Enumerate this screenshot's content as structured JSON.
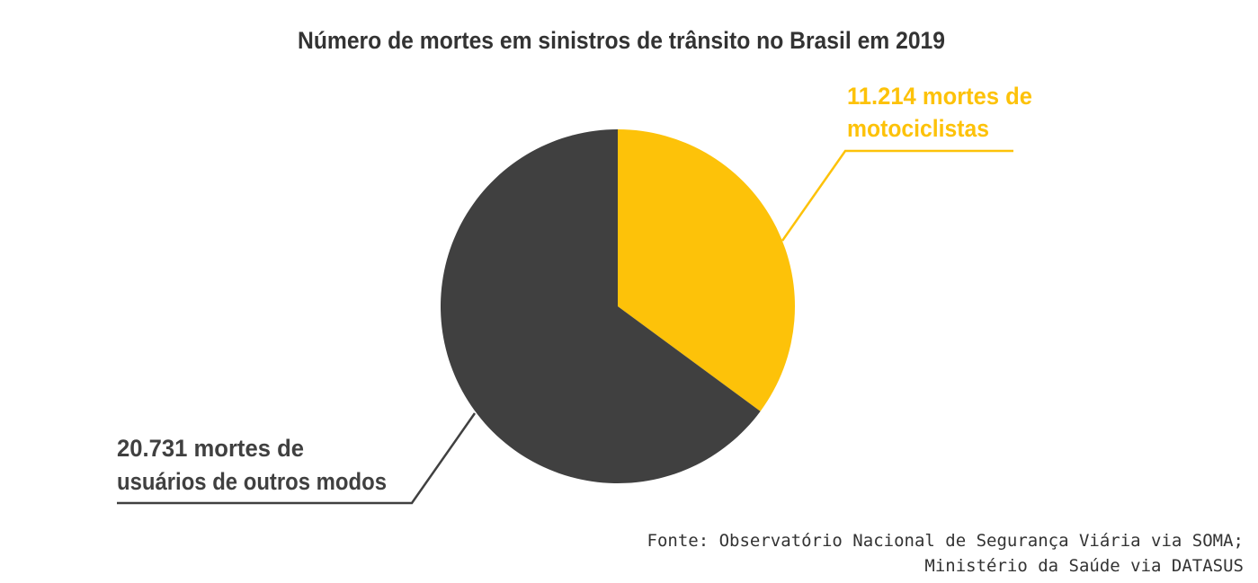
{
  "chart_data": {
    "type": "pie",
    "title": "Número de mortes em sinistros de trânsito no Brasil em 2019",
    "slices": [
      {
        "label_lines": [
          "11.214 mortes de",
          "motociclistas"
        ],
        "value": 11214,
        "color": "#FDC209"
      },
      {
        "label_lines": [
          "20.731 mortes de",
          "usuários de outros modos"
        ],
        "value": 20731,
        "color": "#404040"
      }
    ],
    "start_angle": "12 o'clock",
    "direction": "clockwise",
    "legend": "none",
    "source_lines": [
      "Fonte: Observatório Nacional de Segurança Viária via SOMA;",
      "Ministério da Saúde via DATASUS"
    ]
  }
}
